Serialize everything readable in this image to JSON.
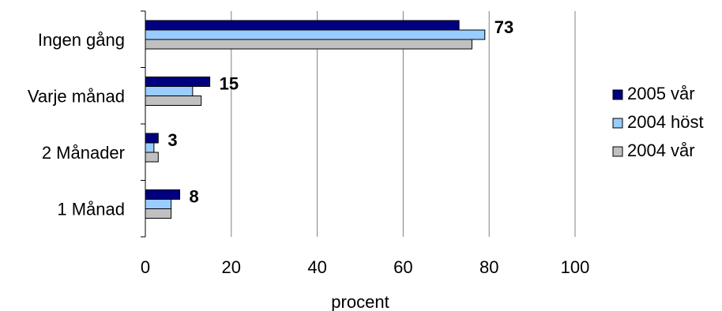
{
  "chart_data": {
    "type": "bar",
    "orientation": "horizontal",
    "categories": [
      "Ingen gång",
      "Varje månad",
      "2 Månader",
      "1 Månad"
    ],
    "series": [
      {
        "name": "2005 vår",
        "values": [
          73,
          15,
          3,
          8
        ],
        "color": "#000080"
      },
      {
        "name": "2004 höst",
        "values": [
          79,
          11,
          2,
          6
        ],
        "color": "#99ccff"
      },
      {
        "name": "2004 vår",
        "values": [
          76,
          13,
          3,
          6
        ],
        "color": "#c0c0c0"
      }
    ],
    "data_labels": [
      "73",
      "15",
      "3",
      "8"
    ],
    "xlabel": "procent",
    "xlim": [
      0,
      100
    ],
    "xticks": [
      0,
      20,
      40,
      60,
      80,
      100
    ],
    "grid": true,
    "legend": "right"
  }
}
